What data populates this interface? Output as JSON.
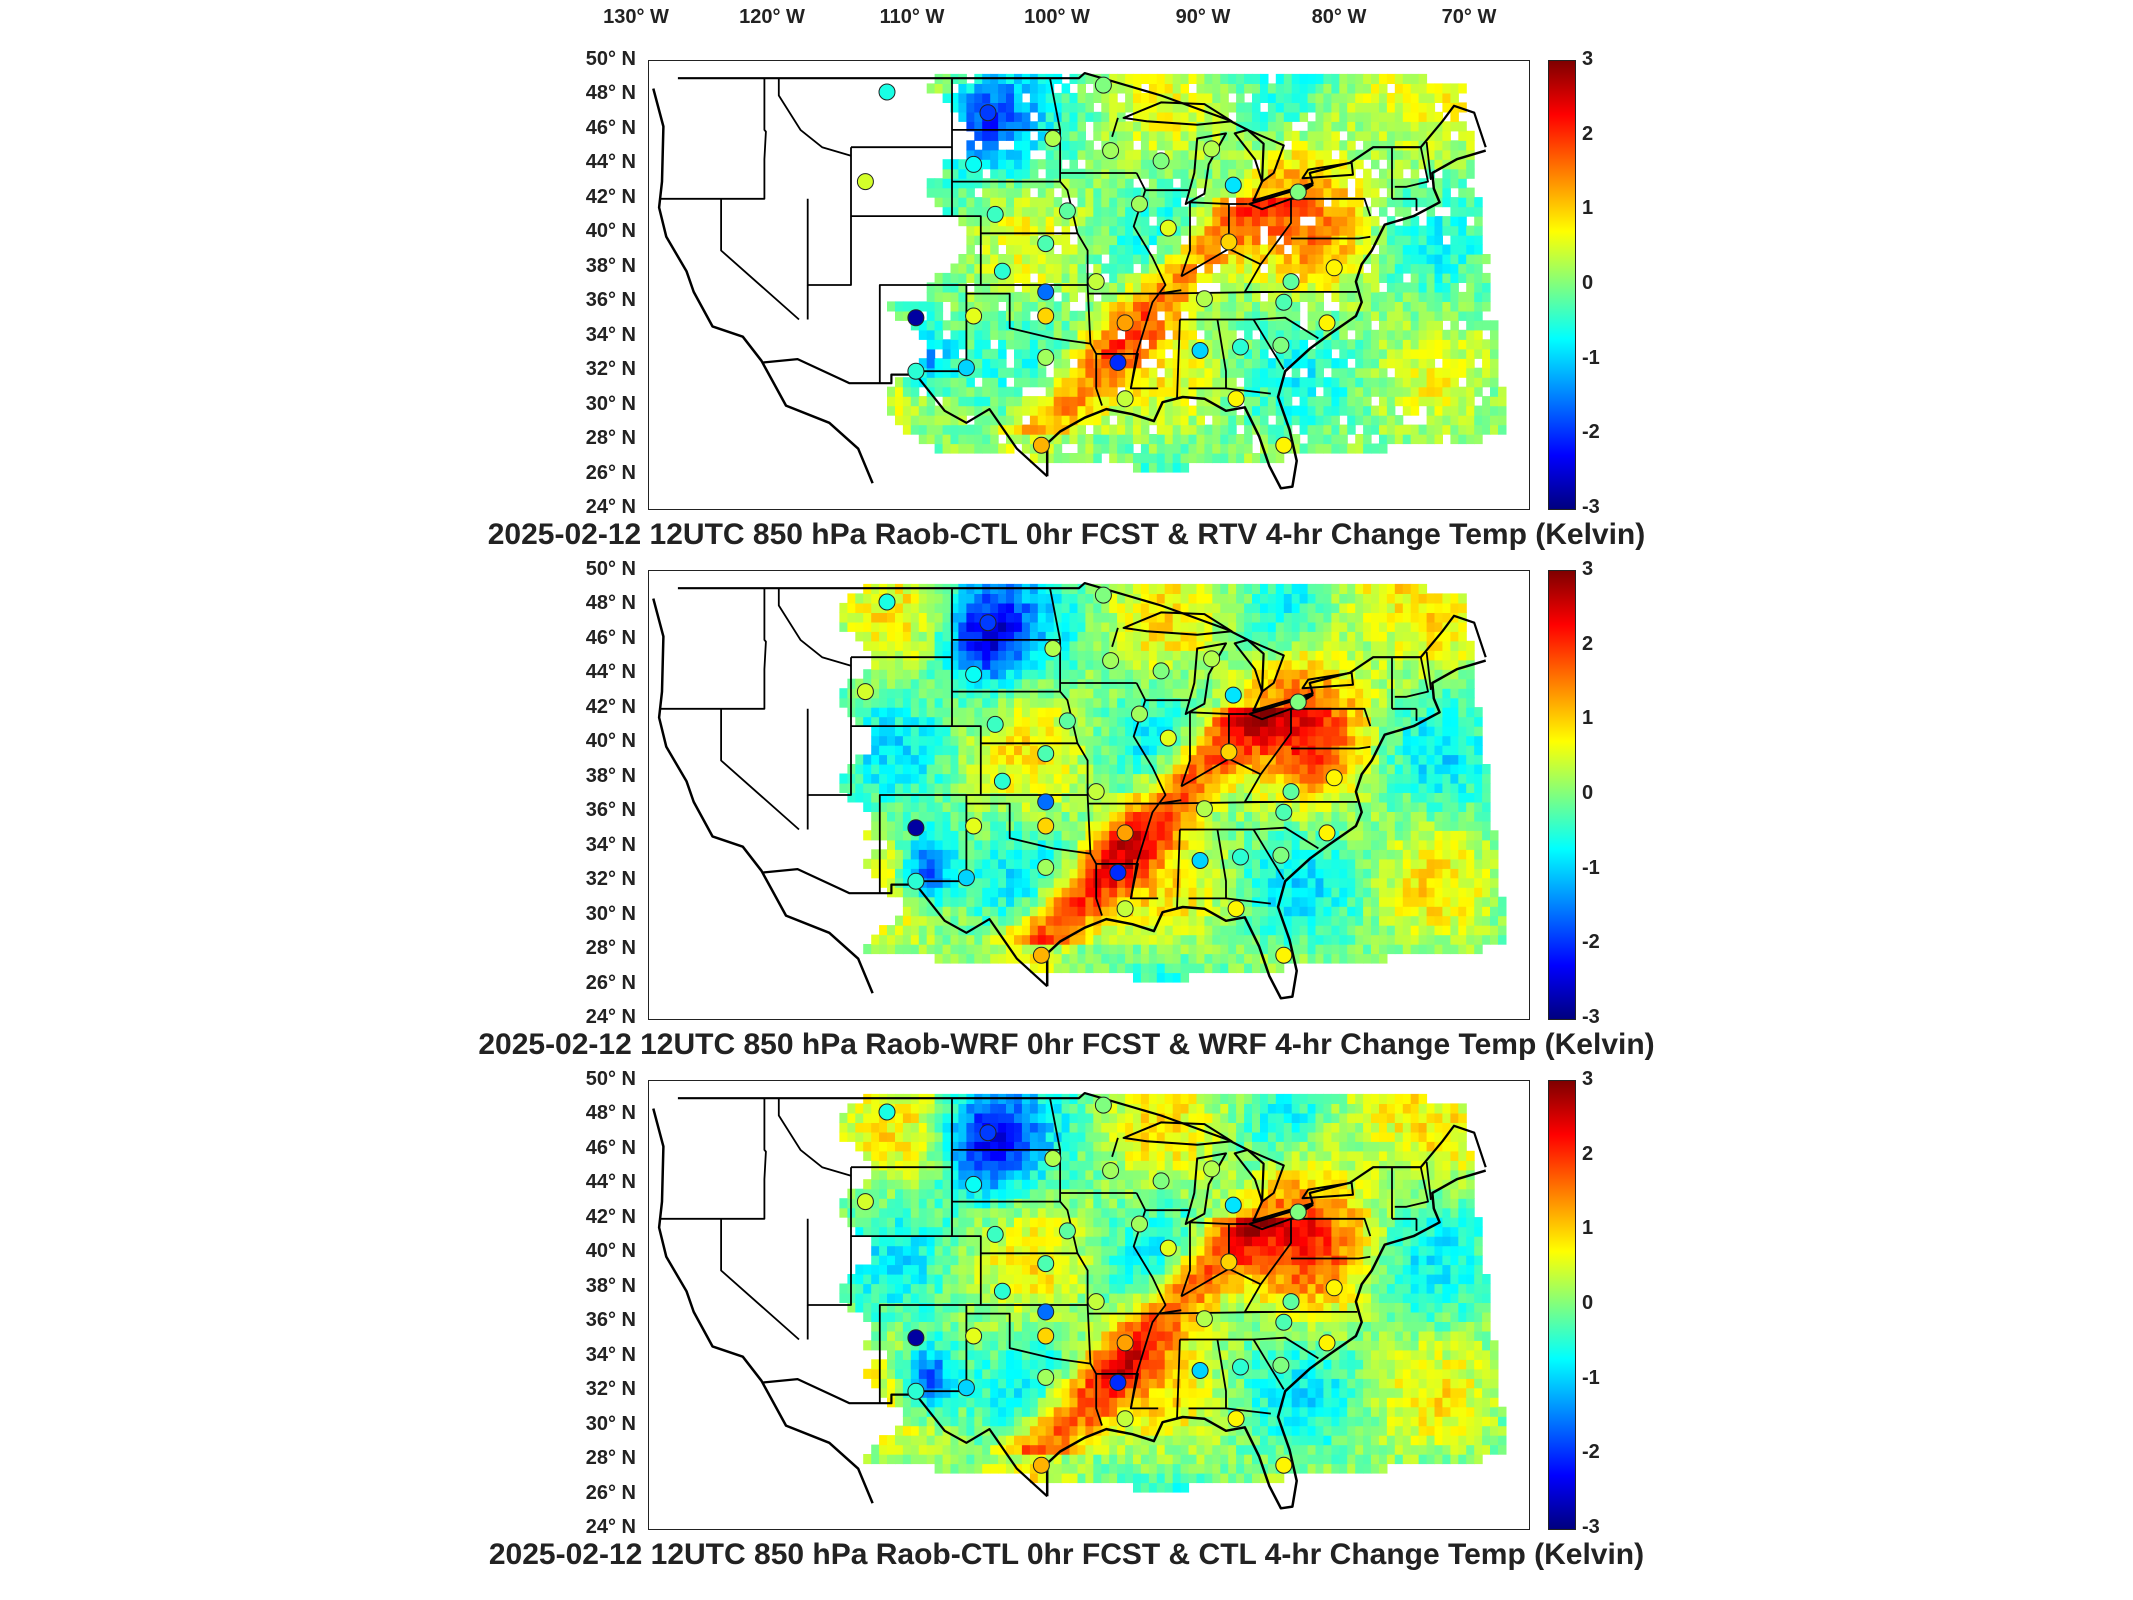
{
  "longitude_labels": [
    "130° W",
    "120° W",
    "110° W",
    "100° W",
    "90° W",
    "80° W",
    "70° W"
  ],
  "latitude_labels": [
    "50° N",
    "48° N",
    "46° N",
    "44° N",
    "42° N",
    "40° N",
    "38° N",
    "36° N",
    "34° N",
    "32° N",
    "30° N",
    "28° N",
    "26° N",
    "24° N"
  ],
  "colorbar": {
    "ticks": [
      "3",
      "2",
      "1",
      "0",
      "-1",
      "-2",
      "-3"
    ],
    "range": [
      -3,
      3
    ],
    "colormap": "jet",
    "colors": [
      "#00007f",
      "#0000ff",
      "#007fff",
      "#00ffff",
      "#7fff7f",
      "#ffff00",
      "#ff7f00",
      "#ff0000",
      "#7f0000"
    ]
  },
  "panels": [
    {
      "title": "2025-02-12 12UTC 850 hPa Raob-CTL 0hr FCST & RTV 4-hr Change Temp (Kelvin)",
      "variant": "rtv"
    },
    {
      "title": "2025-02-12 12UTC 850 hPa Raob-WRF 0hr FCST & WRF 4-hr Change Temp (Kelvin)",
      "variant": "wrf"
    },
    {
      "title": "2025-02-12 12UTC 850 hPa Raob-CTL 0hr FCST & CTL 4-hr Change Temp (Kelvin)",
      "variant": "ctl"
    }
  ],
  "stations": [
    {
      "lon": -108.5,
      "lat": 48.2,
      "v": -0.6
    },
    {
      "lon": -101.5,
      "lat": 47.0,
      "v": -1.9
    },
    {
      "lon": -97.0,
      "lat": 45.5,
      "v": 0.3
    },
    {
      "lon": -93.5,
      "lat": 48.6,
      "v": 0.0
    },
    {
      "lon": -102.5,
      "lat": 44.0,
      "v": -0.7
    },
    {
      "lon": -110.0,
      "lat": 43.0,
      "v": 0.5
    },
    {
      "lon": -93.0,
      "lat": 44.8,
      "v": 0.2
    },
    {
      "lon": -89.5,
      "lat": 44.2,
      "v": 0.0
    },
    {
      "lon": -86.0,
      "lat": 44.9,
      "v": 0.3
    },
    {
      "lon": -84.5,
      "lat": 42.8,
      "v": -0.9
    },
    {
      "lon": -80.0,
      "lat": 42.4,
      "v": 0.0
    },
    {
      "lon": -91.0,
      "lat": 41.7,
      "v": 0.2
    },
    {
      "lon": -101.0,
      "lat": 41.1,
      "v": -0.4
    },
    {
      "lon": -96.0,
      "lat": 41.3,
      "v": -0.2
    },
    {
      "lon": -97.5,
      "lat": 39.4,
      "v": -0.3
    },
    {
      "lon": -100.5,
      "lat": 37.8,
      "v": -0.5
    },
    {
      "lon": -94.0,
      "lat": 37.2,
      "v": 0.4
    },
    {
      "lon": -97.5,
      "lat": 36.6,
      "v": -1.6
    },
    {
      "lon": -102.5,
      "lat": 35.2,
      "v": 0.6
    },
    {
      "lon": -97.5,
      "lat": 35.2,
      "v": 1.0
    },
    {
      "lon": -92.0,
      "lat": 34.8,
      "v": 1.3
    },
    {
      "lon": -89.0,
      "lat": 40.3,
      "v": 0.6
    },
    {
      "lon": -84.8,
      "lat": 39.5,
      "v": 1.0
    },
    {
      "lon": -86.5,
      "lat": 36.2,
      "v": 0.3
    },
    {
      "lon": -80.5,
      "lat": 37.2,
      "v": -0.2
    },
    {
      "lon": -81.0,
      "lat": 36.0,
      "v": -0.3
    },
    {
      "lon": -77.5,
      "lat": 38.0,
      "v": 0.8
    },
    {
      "lon": -78.0,
      "lat": 34.8,
      "v": 0.8
    },
    {
      "lon": -103.0,
      "lat": 32.2,
      "v": -1.0
    },
    {
      "lon": -97.5,
      "lat": 32.8,
      "v": 0.2
    },
    {
      "lon": -92.5,
      "lat": 32.5,
      "v": -2.0
    },
    {
      "lon": -86.8,
      "lat": 33.2,
      "v": -1.0
    },
    {
      "lon": -84.0,
      "lat": 33.4,
      "v": -0.5
    },
    {
      "lon": -81.2,
      "lat": 33.5,
      "v": 0.0
    },
    {
      "lon": -92.0,
      "lat": 30.4,
      "v": 0.4
    },
    {
      "lon": -84.3,
      "lat": 30.4,
      "v": 0.8
    },
    {
      "lon": -97.8,
      "lat": 27.7,
      "v": 1.2
    },
    {
      "lon": -81.0,
      "lat": 27.7,
      "v": 0.8
    },
    {
      "lon": -106.5,
      "lat": 32.0,
      "v": -0.5
    },
    {
      "lon": -106.5,
      "lat": 35.1,
      "v": -2.8
    }
  ]
}
